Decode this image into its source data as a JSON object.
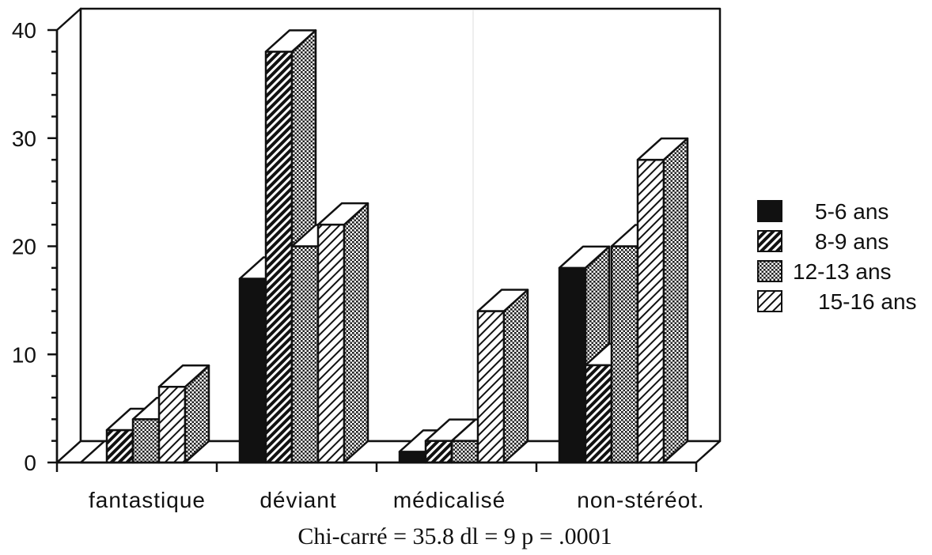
{
  "chart_data": {
    "type": "bar",
    "categories": [
      "fantastique",
      "déviant",
      "médicalisé",
      "non-stéréot."
    ],
    "series": [
      {
        "name": "5-6 ans",
        "values": [
          0,
          17,
          1,
          18
        ]
      },
      {
        "name": "8-9 ans",
        "values": [
          3,
          38,
          2,
          9
        ]
      },
      {
        "name": "12-13 ans",
        "values": [
          4,
          20,
          2,
          20
        ]
      },
      {
        "name": "15-16 ans",
        "values": [
          7,
          22,
          14,
          28
        ]
      }
    ],
    "yticks": [
      0,
      10,
      20,
      30,
      40
    ],
    "ylim": [
      0,
      40
    ],
    "xlabel": "",
    "ylabel": "",
    "annotation": "Chi-carré = 35.8  dl = 9  p = .0001",
    "legend_position": "right",
    "grid": false,
    "style": "3d-bar, black-and-white hatched patterns"
  }
}
